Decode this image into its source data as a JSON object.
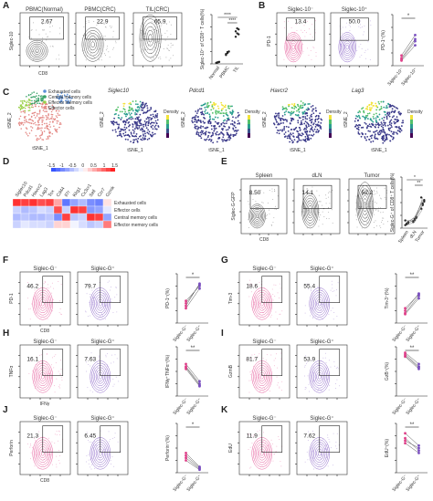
{
  "panels": {
    "A": {
      "letter": "A",
      "plots": [
        {
          "title": "PBMC(Normal)",
          "value": "2.67"
        },
        {
          "title": "PBMC(CRC)",
          "value": "22.9"
        },
        {
          "title": "TIL(CRC)",
          "value": "65.9"
        }
      ],
      "ylabel": "Siglec-10",
      "xlabel": "CD8",
      "summary": {
        "ylabel": "Siglec-10⁺ of CD8⁺ T cells(%)",
        "categories": [
          "Normal",
          "PBMC",
          "TIL"
        ],
        "sig": [
          "****",
          "****"
        ]
      }
    },
    "B": {
      "letter": "B",
      "plots": [
        {
          "title": "Siglec-10⁻",
          "value": "13.4"
        },
        {
          "title": "Siglec-10⁺",
          "value": "50.0"
        }
      ],
      "ylabel": "PD-1",
      "summary": {
        "ylabel": "PD-1⁺(%)",
        "categories": [
          "Siglec-10⁻",
          "Siglec-10⁺"
        ],
        "sig": "*"
      }
    },
    "C": {
      "letter": "C",
      "legend": [
        "Exhausted cells",
        "Central memory cells",
        "Effector memory cells",
        "Effector cells"
      ],
      "legend_colors": [
        "#5a8fd6",
        "#3aa36a",
        "#9bd04a",
        "#e48a86"
      ],
      "maps": [
        "Siglec10",
        "Pdcd1",
        "Havcr2",
        "Lag3"
      ],
      "density_label": "Density",
      "axis_x": "tSNE_1",
      "axis_y": "tSNE_2"
    },
    "D": {
      "letter": "D",
      "genes": [
        "Siglec10",
        "Pdcd1",
        "Havcr2",
        "Lag3",
        "Tox",
        "Cd44",
        "Il7r",
        "Klrg1",
        "Cx3cr1",
        "Sell",
        "Ccr7",
        "Gzmk"
      ],
      "rows": [
        "Exhausted cells",
        "Effector cells",
        "Central memory cells",
        "Effector memory cells"
      ],
      "scale": [
        "-1.5",
        "-1",
        "-0.5",
        "0",
        "0.5",
        "1",
        "1.5"
      ]
    },
    "E": {
      "letter": "E",
      "plots": [
        {
          "title": "Spleen",
          "value": "8.50"
        },
        {
          "title": "dLN",
          "value": "14.1"
        },
        {
          "title": "Tumor",
          "value": "52.2"
        }
      ],
      "ylabel": "Siglec-G-GFP",
      "xlabel": "CD8",
      "summary": {
        "ylabel": "Siglec-G⁺ of CD8⁺ T cells(%)",
        "categories": [
          "Spleen",
          "dLN",
          "Tumor"
        ],
        "sig": [
          "*",
          "**"
        ]
      }
    },
    "F": {
      "letter": "F",
      "titles": [
        "Siglec-G⁻",
        "Siglec-G⁺"
      ],
      "values": [
        "46.2",
        "79.7"
      ],
      "ylabel": "PD-1",
      "xlabel": "CD8",
      "sumlabel": "PD-1⁺(%)",
      "sig": "*"
    },
    "G": {
      "letter": "G",
      "titles": [
        "Siglec-G⁻",
        "Siglec-G⁺"
      ],
      "values": [
        "18.6",
        "55.4"
      ],
      "ylabel": "Tim-3",
      "xlabel": "",
      "sumlabel": "Tim-3⁺(%)",
      "sig": "**"
    },
    "H": {
      "letter": "H",
      "titles": [
        "Siglec-G⁻",
        "Siglec-G⁺"
      ],
      "values": [
        "16.1",
        "7.63"
      ],
      "ylabel": "TNFα",
      "xlabel": "IFNγ",
      "sumlabel": "IFNγ⁺TNFα⁺(%)",
      "sig": "**"
    },
    "I": {
      "letter": "I",
      "titles": [
        "Siglec-G⁻",
        "Siglec-G⁺"
      ],
      "values": [
        "81.7",
        "53.9"
      ],
      "ylabel": "GzmB",
      "xlabel": "",
      "sumlabel": "GzB⁺(%)",
      "sig": "**"
    },
    "J": {
      "letter": "J",
      "titles": [
        "Siglec-G⁻",
        "Siglec-G⁺"
      ],
      "values": [
        "21.3",
        "6.45"
      ],
      "ylabel": "Perforin",
      "xlabel": "CD8",
      "sumlabel": "Perforin⁺(%)",
      "sig": "*"
    },
    "K": {
      "letter": "K",
      "titles": [
        "Siglec-G⁻",
        "Siglec-G⁺"
      ],
      "values": [
        "11.9",
        "7.62"
      ],
      "ylabel": "EdU",
      "xlabel": "",
      "sumlabel": "EdU⁺(%)",
      "sig": "**"
    },
    "pair_categories": [
      "Siglec-G⁻",
      "Siglec-G⁺"
    ]
  },
  "colors": {
    "pink": "#e0408a",
    "purple": "#7a4fc0",
    "black": "#333333"
  }
}
